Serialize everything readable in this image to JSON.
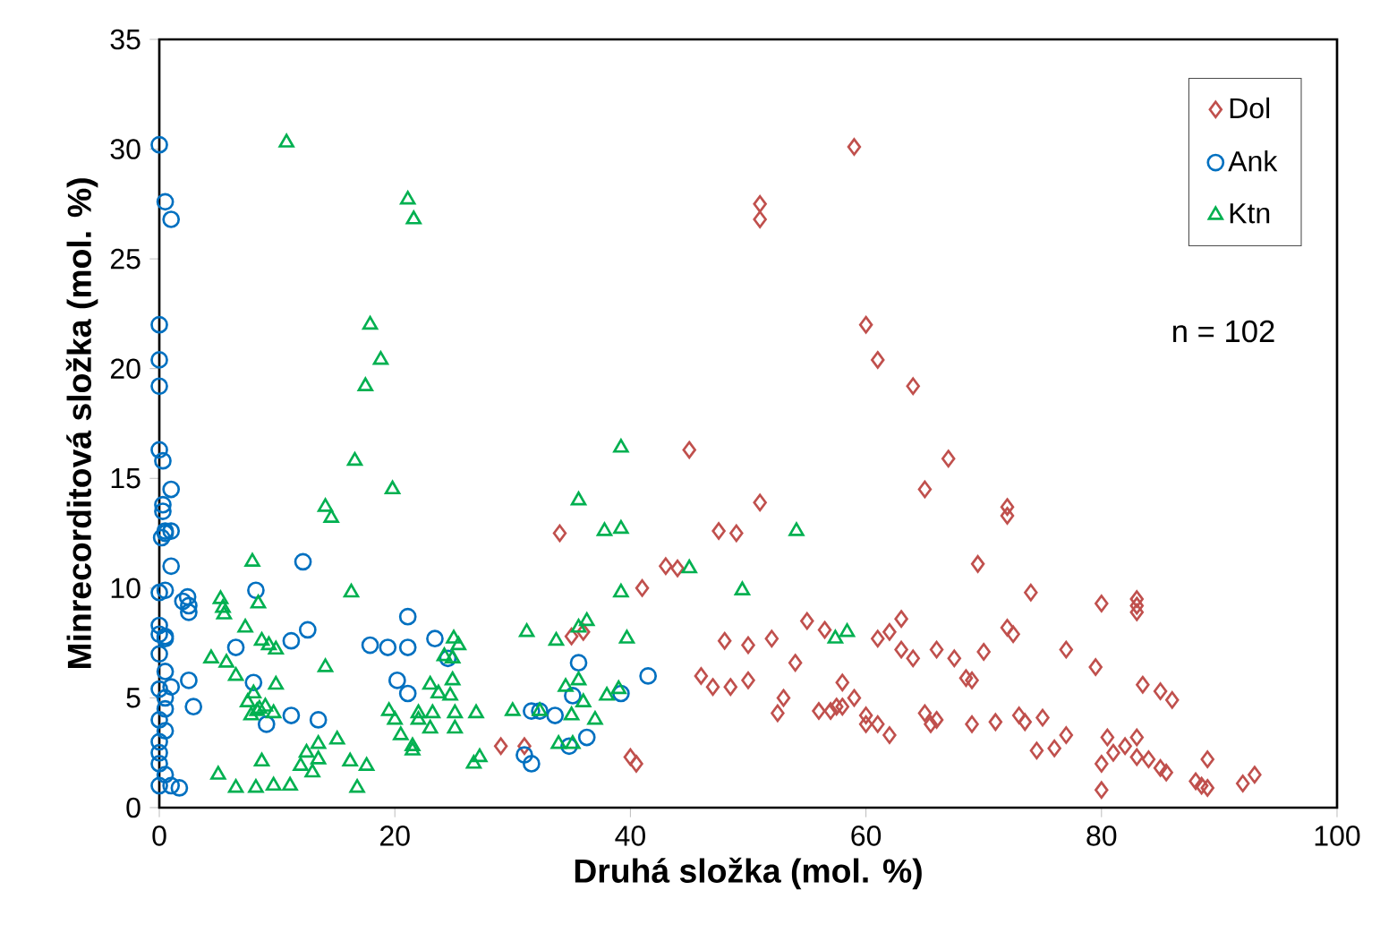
{
  "chart_data": {
    "type": "scatter",
    "xlabel": "Druhá složka (mol. %)",
    "ylabel": "Minrecorditová složka (mol. %)",
    "xlim": [
      0,
      100
    ],
    "ylim": [
      0,
      35
    ],
    "xticks": [
      0,
      20,
      40,
      60,
      80,
      100
    ],
    "yticks": [
      0,
      5,
      10,
      15,
      20,
      25,
      30,
      35
    ],
    "grid": false,
    "legend": "top right",
    "annotations": [
      "n = 102"
    ],
    "series": [
      {
        "name": "Dol",
        "color": "#c0504d",
        "marker": "diamond",
        "x": [
          29,
          31,
          34,
          35,
          36,
          40,
          40.5,
          41,
          43,
          44,
          45,
          46,
          47,
          47.5,
          48,
          48.5,
          49,
          50,
          50,
          51,
          51,
          51,
          52,
          52.5,
          53,
          54,
          55,
          56,
          56.5,
          57,
          57.5,
          58,
          58,
          59,
          59,
          60,
          60,
          60,
          61,
          61,
          61,
          62,
          62,
          63,
          63,
          64,
          64,
          65,
          65,
          65.5,
          66,
          66,
          67,
          67.5,
          68.5,
          69,
          69,
          69.5,
          70,
          71,
          72,
          72,
          72,
          72.5,
          73,
          73.5,
          74,
          74.5,
          75,
          76,
          77,
          77,
          79.5,
          80,
          80,
          80.5,
          80,
          81,
          82,
          83,
          83,
          83,
          83,
          83,
          83.5,
          84,
          85,
          85,
          86,
          88,
          89,
          89,
          92,
          93,
          85.5,
          88.5
        ],
        "values": [
          2.8,
          2.8,
          12.5,
          7.8,
          8,
          2.3,
          2,
          10,
          11,
          10.9,
          16.3,
          6,
          5.5,
          12.6,
          7.6,
          5.5,
          12.5,
          7.4,
          5.8,
          27.5,
          26.8,
          13.9,
          7.7,
          4.3,
          5,
          6.6,
          8.5,
          4.4,
          8.1,
          4.4,
          4.6,
          5.7,
          4.6,
          30.1,
          5,
          4.2,
          3.8,
          22,
          20.4,
          7.7,
          3.8,
          3.3,
          8,
          8.6,
          7.2,
          19.2,
          6.8,
          14.5,
          4.3,
          3.8,
          7.2,
          4,
          15.9,
          6.8,
          5.9,
          5.8,
          3.8,
          11.1,
          7.1,
          3.9,
          13.7,
          13.3,
          8.2,
          7.9,
          4.2,
          3.9,
          9.8,
          2.6,
          4.1,
          2.7,
          3.3,
          7.2,
          6.4,
          2,
          9.3,
          3.2,
          0.8,
          2.5,
          2.8,
          9.5,
          9.2,
          8.9,
          3.2,
          2.3,
          5.6,
          2.2,
          1.8,
          5.3,
          4.9,
          1.2,
          0.9,
          2.2,
          1.1,
          1.5,
          1.6,
          1
        ]
      },
      {
        "name": "Ank",
        "color": "#0070c0",
        "marker": "circle",
        "x": [
          0,
          0.5,
          1,
          0,
          0,
          0,
          0,
          0.3,
          1,
          0.3,
          0.3,
          0.5,
          1,
          0.5,
          0.2,
          1,
          0,
          0.5,
          2,
          2.5,
          2.5,
          0,
          0,
          0.5,
          0.5,
          0,
          0.5,
          0,
          1,
          0.5,
          0.5,
          0,
          0.5,
          0,
          0,
          0,
          0.5,
          0,
          1,
          2.5,
          2.9,
          1.7,
          12.2,
          8.2,
          2.4,
          6.5,
          12.6,
          11.2,
          17.9,
          19.4,
          21.1,
          21.1,
          20.2,
          21.1,
          8,
          9.1,
          11.2,
          13.5,
          23.4,
          24.5,
          35.6,
          41.5,
          35.1,
          39.2,
          31.6,
          33.6,
          31,
          31.6,
          34.8,
          36.3,
          32.3
        ],
        "values": [
          30.2,
          27.6,
          26.8,
          22,
          20.4,
          19.2,
          16.3,
          15.8,
          14.5,
          13.8,
          13.5,
          12.6,
          12.6,
          12.5,
          12.3,
          11,
          9.8,
          9.9,
          9.4,
          9.2,
          8.9,
          8.3,
          7.9,
          7.7,
          7.8,
          7,
          6.2,
          5.4,
          5.5,
          5,
          4.5,
          4,
          3.5,
          3,
          2.5,
          2,
          1.5,
          1,
          1,
          5.8,
          4.6,
          0.9,
          11.2,
          9.9,
          9.6,
          7.3,
          8.1,
          7.6,
          7.4,
          7.3,
          7.3,
          8.7,
          5.8,
          5.2,
          5.7,
          3.8,
          4.2,
          4,
          7.7,
          6.8,
          6.6,
          6,
          5.1,
          5.2,
          4.4,
          4.2,
          2.4,
          2,
          2.8,
          3.2,
          4.4
        ]
      },
      {
        "name": "Ktn",
        "color": "#00b050",
        "marker": "triangle",
        "x": [
          10.8,
          21.1,
          21.6,
          17.9,
          18.8,
          17.5,
          16.6,
          19.8,
          14.1,
          14.6,
          7.9,
          16.3,
          5.2,
          5.4,
          5.5,
          8.4,
          7.3,
          8.7,
          9.3,
          9.9,
          4.4,
          5.7,
          6.5,
          14.1,
          9.9,
          7.5,
          8,
          8.5,
          7.8,
          8.3,
          9,
          9.7,
          8.7,
          5,
          6.5,
          8.2,
          9.7,
          11.1,
          13.5,
          12.5,
          12,
          13,
          13.5,
          15.1,
          16.2,
          17.6,
          16.8,
          19.5,
          20,
          20.5,
          22,
          21.5,
          23,
          21.5,
          22,
          23,
          24.2,
          24.7,
          25,
          39.2,
          35.6,
          37.8,
          39.2,
          54.1,
          45,
          39.2,
          49.5,
          31.2,
          33.7,
          35.6,
          36.3,
          39.7,
          25.4,
          24.9,
          24.9,
          23.7,
          23.2,
          25.1,
          26.9,
          25.1,
          26.7,
          27.2,
          30,
          32.3,
          35.6,
          34.5,
          35,
          36,
          37,
          38,
          39,
          33.9,
          35.1,
          57.4,
          58.4
        ],
        "values": [
          30.3,
          27.7,
          26.8,
          22,
          20.4,
          19.2,
          15.8,
          14.5,
          13.7,
          13.2,
          11.2,
          9.8,
          9.5,
          9.1,
          8.8,
          9.3,
          8.2,
          7.6,
          7.4,
          7.2,
          6.8,
          6.6,
          6,
          6.4,
          5.6,
          4.8,
          5.2,
          4.5,
          4.2,
          4.4,
          4.6,
          4.3,
          2.1,
          1.5,
          0.9,
          0.9,
          1,
          1,
          2.9,
          2.5,
          1.9,
          1.6,
          2.2,
          3.1,
          2.1,
          1.9,
          0.9,
          4.4,
          4,
          3.3,
          4.3,
          2.8,
          3.6,
          2.6,
          4,
          5.6,
          6.9,
          5.1,
          7.7,
          16.4,
          14,
          12.6,
          12.7,
          12.6,
          10.9,
          9.8,
          9.9,
          8,
          7.6,
          8.2,
          8.5,
          7.7,
          7.4,
          6.8,
          5.8,
          5.2,
          4.3,
          4.3,
          4.3,
          3.6,
          2,
          2.3,
          4.4,
          4.4,
          5.8,
          5.5,
          4.2,
          4.8,
          4,
          5.1,
          5.4,
          2.9,
          2.9,
          7.7,
          8
        ]
      }
    ]
  }
}
